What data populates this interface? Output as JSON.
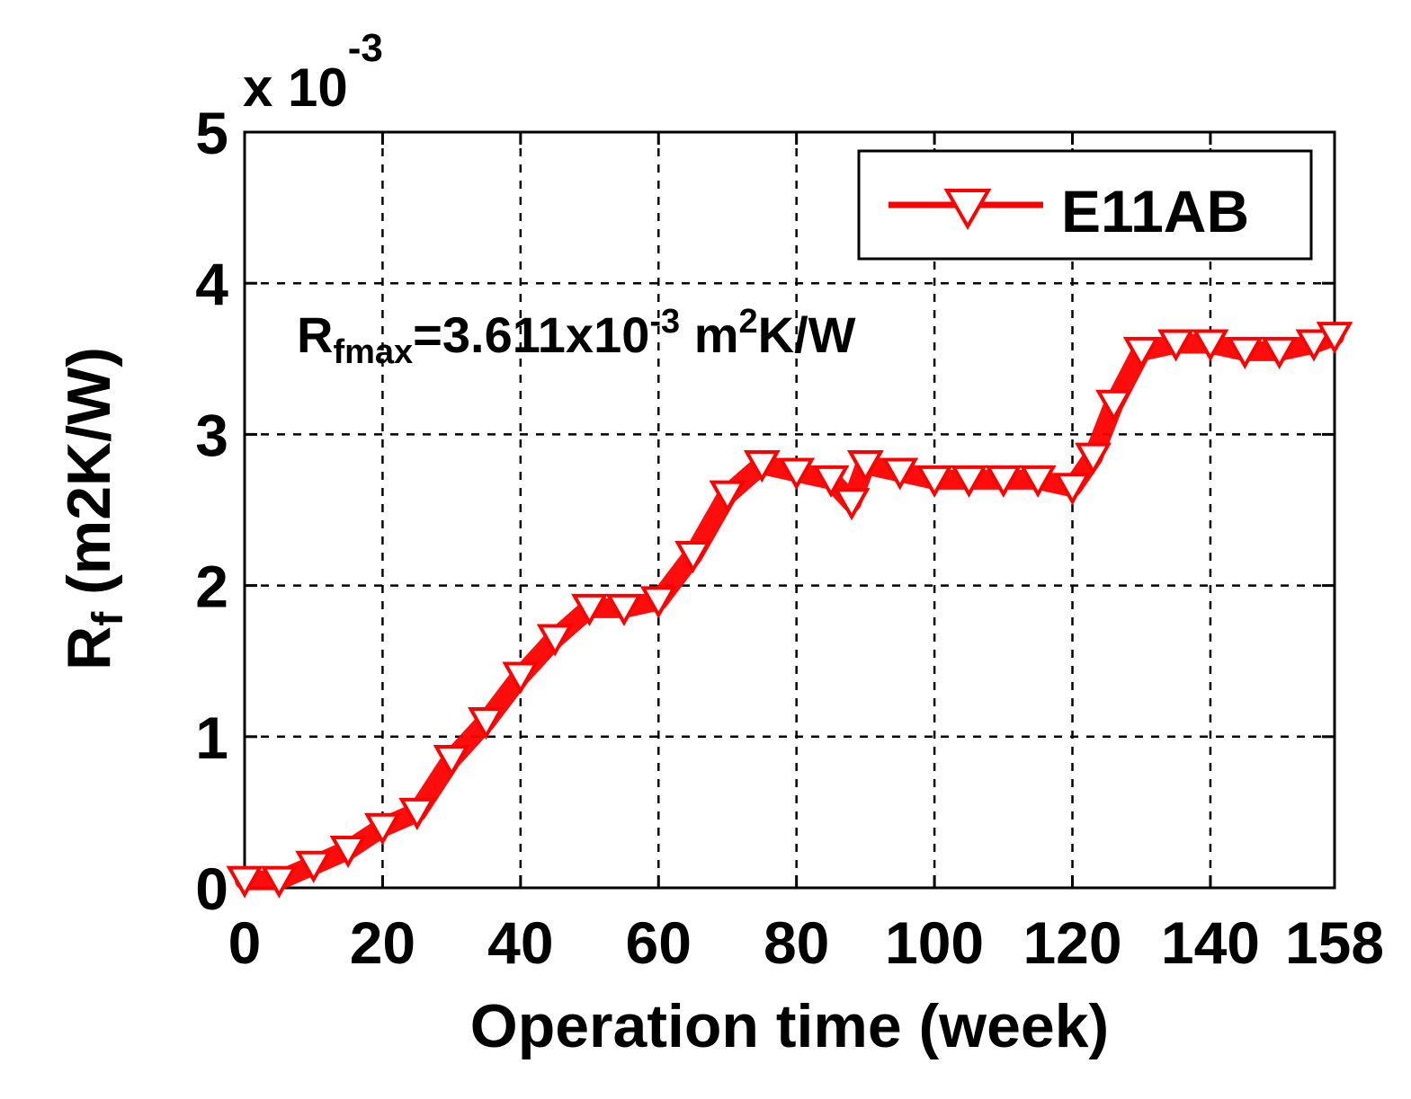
{
  "chart_data": {
    "type": "line",
    "xlabel": "Operation time (week)",
    "ylabel_main": "R",
    "ylabel_sub": "f",
    "ylabel_unit": " (m2K/W)",
    "y_multiplier": {
      "base": "x 10",
      "exponent": "-3"
    },
    "xlim": [
      0,
      158
    ],
    "ylim": [
      0,
      5
    ],
    "xticks": [
      0,
      20,
      40,
      60,
      80,
      100,
      120,
      140,
      158
    ],
    "xtick_labels": [
      "0",
      "20",
      "40",
      "60",
      "80",
      "100",
      "120",
      "140",
      "158"
    ],
    "yticks": [
      0,
      1,
      2,
      3,
      4,
      5
    ],
    "ytick_labels": [
      "0",
      "1",
      "2",
      "3",
      "4",
      "5"
    ],
    "grid": true,
    "legend_position": "top-right",
    "marker": "triangle-down",
    "annotation": {
      "prefix": "R",
      "prefix_sub": "fmax",
      "value": "=3.611x10",
      "value_sup": "-3",
      "unit_base": " m",
      "unit_sup": "2",
      "unit_rest": "K/W"
    },
    "series": [
      {
        "name": "E11AB",
        "color": "#ff0000",
        "x": [
          0,
          5,
          10,
          15,
          20,
          25,
          30,
          35,
          40,
          45,
          50,
          55,
          60,
          65,
          70,
          75,
          80,
          85,
          88,
          90,
          95,
          100,
          105,
          110,
          115,
          120,
          123,
          126,
          130,
          135,
          140,
          145,
          150,
          155,
          158
        ],
        "y": [
          0.05,
          0.05,
          0.15,
          0.25,
          0.4,
          0.5,
          0.85,
          1.1,
          1.4,
          1.65,
          1.85,
          1.85,
          1.9,
          2.2,
          2.6,
          2.8,
          2.75,
          2.7,
          2.55,
          2.8,
          2.75,
          2.7,
          2.7,
          2.7,
          2.7,
          2.65,
          2.85,
          3.2,
          3.55,
          3.6,
          3.6,
          3.55,
          3.55,
          3.6,
          3.65
        ]
      }
    ]
  }
}
